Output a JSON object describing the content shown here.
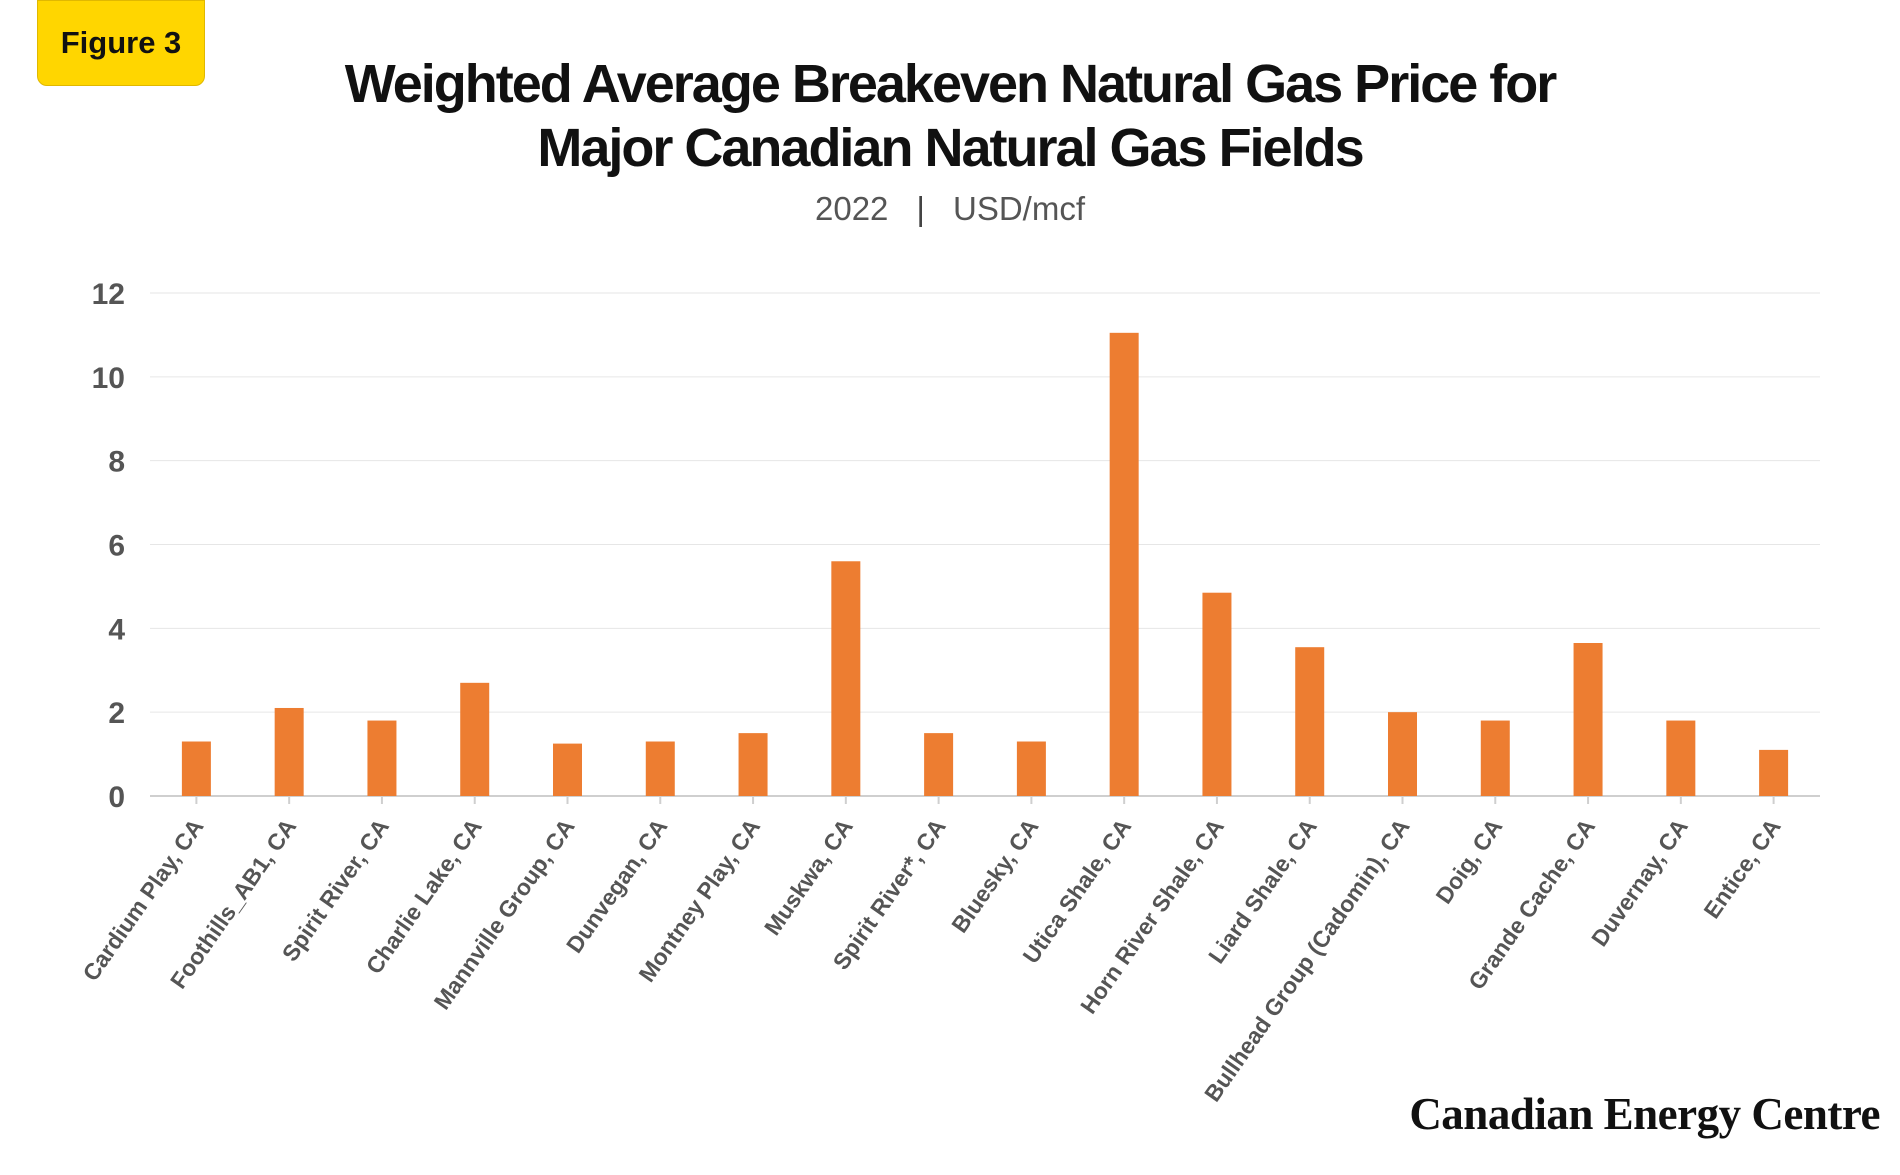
{
  "badge": {
    "label": "Figure 3"
  },
  "header": {
    "title_line1": "Weighted Average Breakeven Natural Gas Price for",
    "title_line2": "Major Canadian Natural Gas Fields",
    "subtitle_year": "2022",
    "subtitle_separator": "|",
    "subtitle_unit": "USD/mcf"
  },
  "brand": {
    "text": "Canadian Energy Centre"
  },
  "colors": {
    "bar": "#ED7D31",
    "grid": "#e6e6e6",
    "axis_text": "#555555"
  },
  "chart_data": {
    "type": "bar",
    "title": "Weighted Average Breakeven Natural Gas Price for Major Canadian Natural Gas Fields",
    "subtitle": "2022 | USD/mcf",
    "xlabel": "",
    "ylabel": "",
    "ylim": [
      0,
      12
    ],
    "yticks": [
      0,
      2,
      4,
      6,
      8,
      10,
      12
    ],
    "grid": true,
    "legend": "none",
    "categories": [
      "Cardium Play, CA",
      "Foothills_AB1, CA",
      "Spirit River, CA",
      "Charlie Lake, CA",
      "Mannville Group, CA",
      "Dunvegan, CA",
      "Montney Play, CA",
      "Muskwa, CA",
      "Spirit River*, CA",
      "Bluesky, CA",
      "Utica Shale, CA",
      "Horn River Shale, CA",
      "Liard Shale, CA",
      "Bullhead Group (Cadomin), CA",
      "Doig, CA",
      "Grande Cache, CA",
      "Duvernay, CA",
      "Entice, CA"
    ],
    "values": [
      1.3,
      2.1,
      1.8,
      2.7,
      1.25,
      1.3,
      1.5,
      5.6,
      1.5,
      1.3,
      11.05,
      4.85,
      3.55,
      2.0,
      1.8,
      3.65,
      1.8,
      1.1
    ]
  }
}
